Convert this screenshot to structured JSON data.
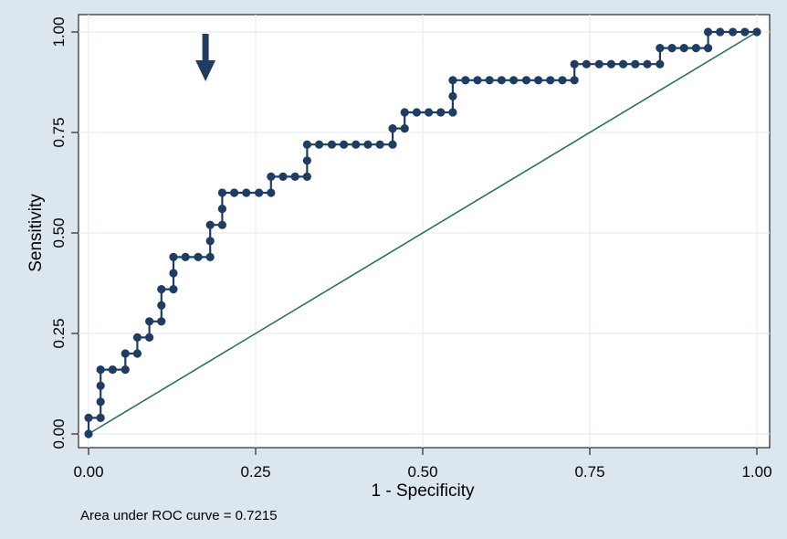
{
  "chart_data": {
    "type": "line",
    "xlabel": "1 - Specificity",
    "ylabel": "Sensitivity",
    "xlim": [
      0,
      1
    ],
    "ylim": [
      0,
      1
    ],
    "xticks": [
      "0.00",
      "0.25",
      "0.50",
      "0.75",
      "1.00"
    ],
    "yticks": [
      "0.00",
      "0.25",
      "0.50",
      "0.75",
      "1.00"
    ],
    "grid": true,
    "annotation": "Area under ROC curve = 0.7215",
    "arrow_marker_x": 0.175,
    "series": [
      {
        "type": "step-line-with-markers",
        "color": "#1f3d63",
        "x": [
          0,
          0,
          0.018,
          0.018,
          0.018,
          0.018,
          0.036,
          0.055,
          0.055,
          0.073,
          0.073,
          0.091,
          0.091,
          0.109,
          0.109,
          0.109,
          0.127,
          0.127,
          0.127,
          0.145,
          0.164,
          0.182,
          0.182,
          0.182,
          0.2,
          0.2,
          0.2,
          0.218,
          0.236,
          0.255,
          0.273,
          0.273,
          0.291,
          0.309,
          0.327,
          0.327,
          0.327,
          0.345,
          0.364,
          0.382,
          0.4,
          0.418,
          0.436,
          0.455,
          0.455,
          0.473,
          0.473,
          0.491,
          0.509,
          0.527,
          0.545,
          0.545,
          0.545,
          0.564,
          0.582,
          0.6,
          0.618,
          0.636,
          0.655,
          0.673,
          0.691,
          0.709,
          0.727,
          0.727,
          0.745,
          0.764,
          0.782,
          0.8,
          0.818,
          0.836,
          0.855,
          0.855,
          0.873,
          0.891,
          0.909,
          0.927,
          0.927,
          0.945,
          0.964,
          0.982,
          1.0
        ],
        "y": [
          0,
          0.04,
          0.04,
          0.08,
          0.12,
          0.16,
          0.16,
          0.16,
          0.2,
          0.2,
          0.24,
          0.24,
          0.28,
          0.28,
          0.32,
          0.36,
          0.36,
          0.4,
          0.44,
          0.44,
          0.44,
          0.44,
          0.48,
          0.52,
          0.52,
          0.56,
          0.6,
          0.6,
          0.6,
          0.6,
          0.6,
          0.64,
          0.64,
          0.64,
          0.64,
          0.68,
          0.72,
          0.72,
          0.72,
          0.72,
          0.72,
          0.72,
          0.72,
          0.72,
          0.76,
          0.76,
          0.8,
          0.8,
          0.8,
          0.8,
          0.8,
          0.84,
          0.88,
          0.88,
          0.88,
          0.88,
          0.88,
          0.88,
          0.88,
          0.88,
          0.88,
          0.88,
          0.88,
          0.92,
          0.92,
          0.92,
          0.92,
          0.92,
          0.92,
          0.92,
          0.92,
          0.96,
          0.96,
          0.96,
          0.96,
          0.96,
          1.0,
          1.0,
          1.0,
          1.0,
          1.0
        ]
      },
      {
        "type": "reference-line",
        "color": "#2f6f5e",
        "x": [
          0,
          1
        ],
        "y": [
          0,
          1
        ]
      }
    ]
  }
}
